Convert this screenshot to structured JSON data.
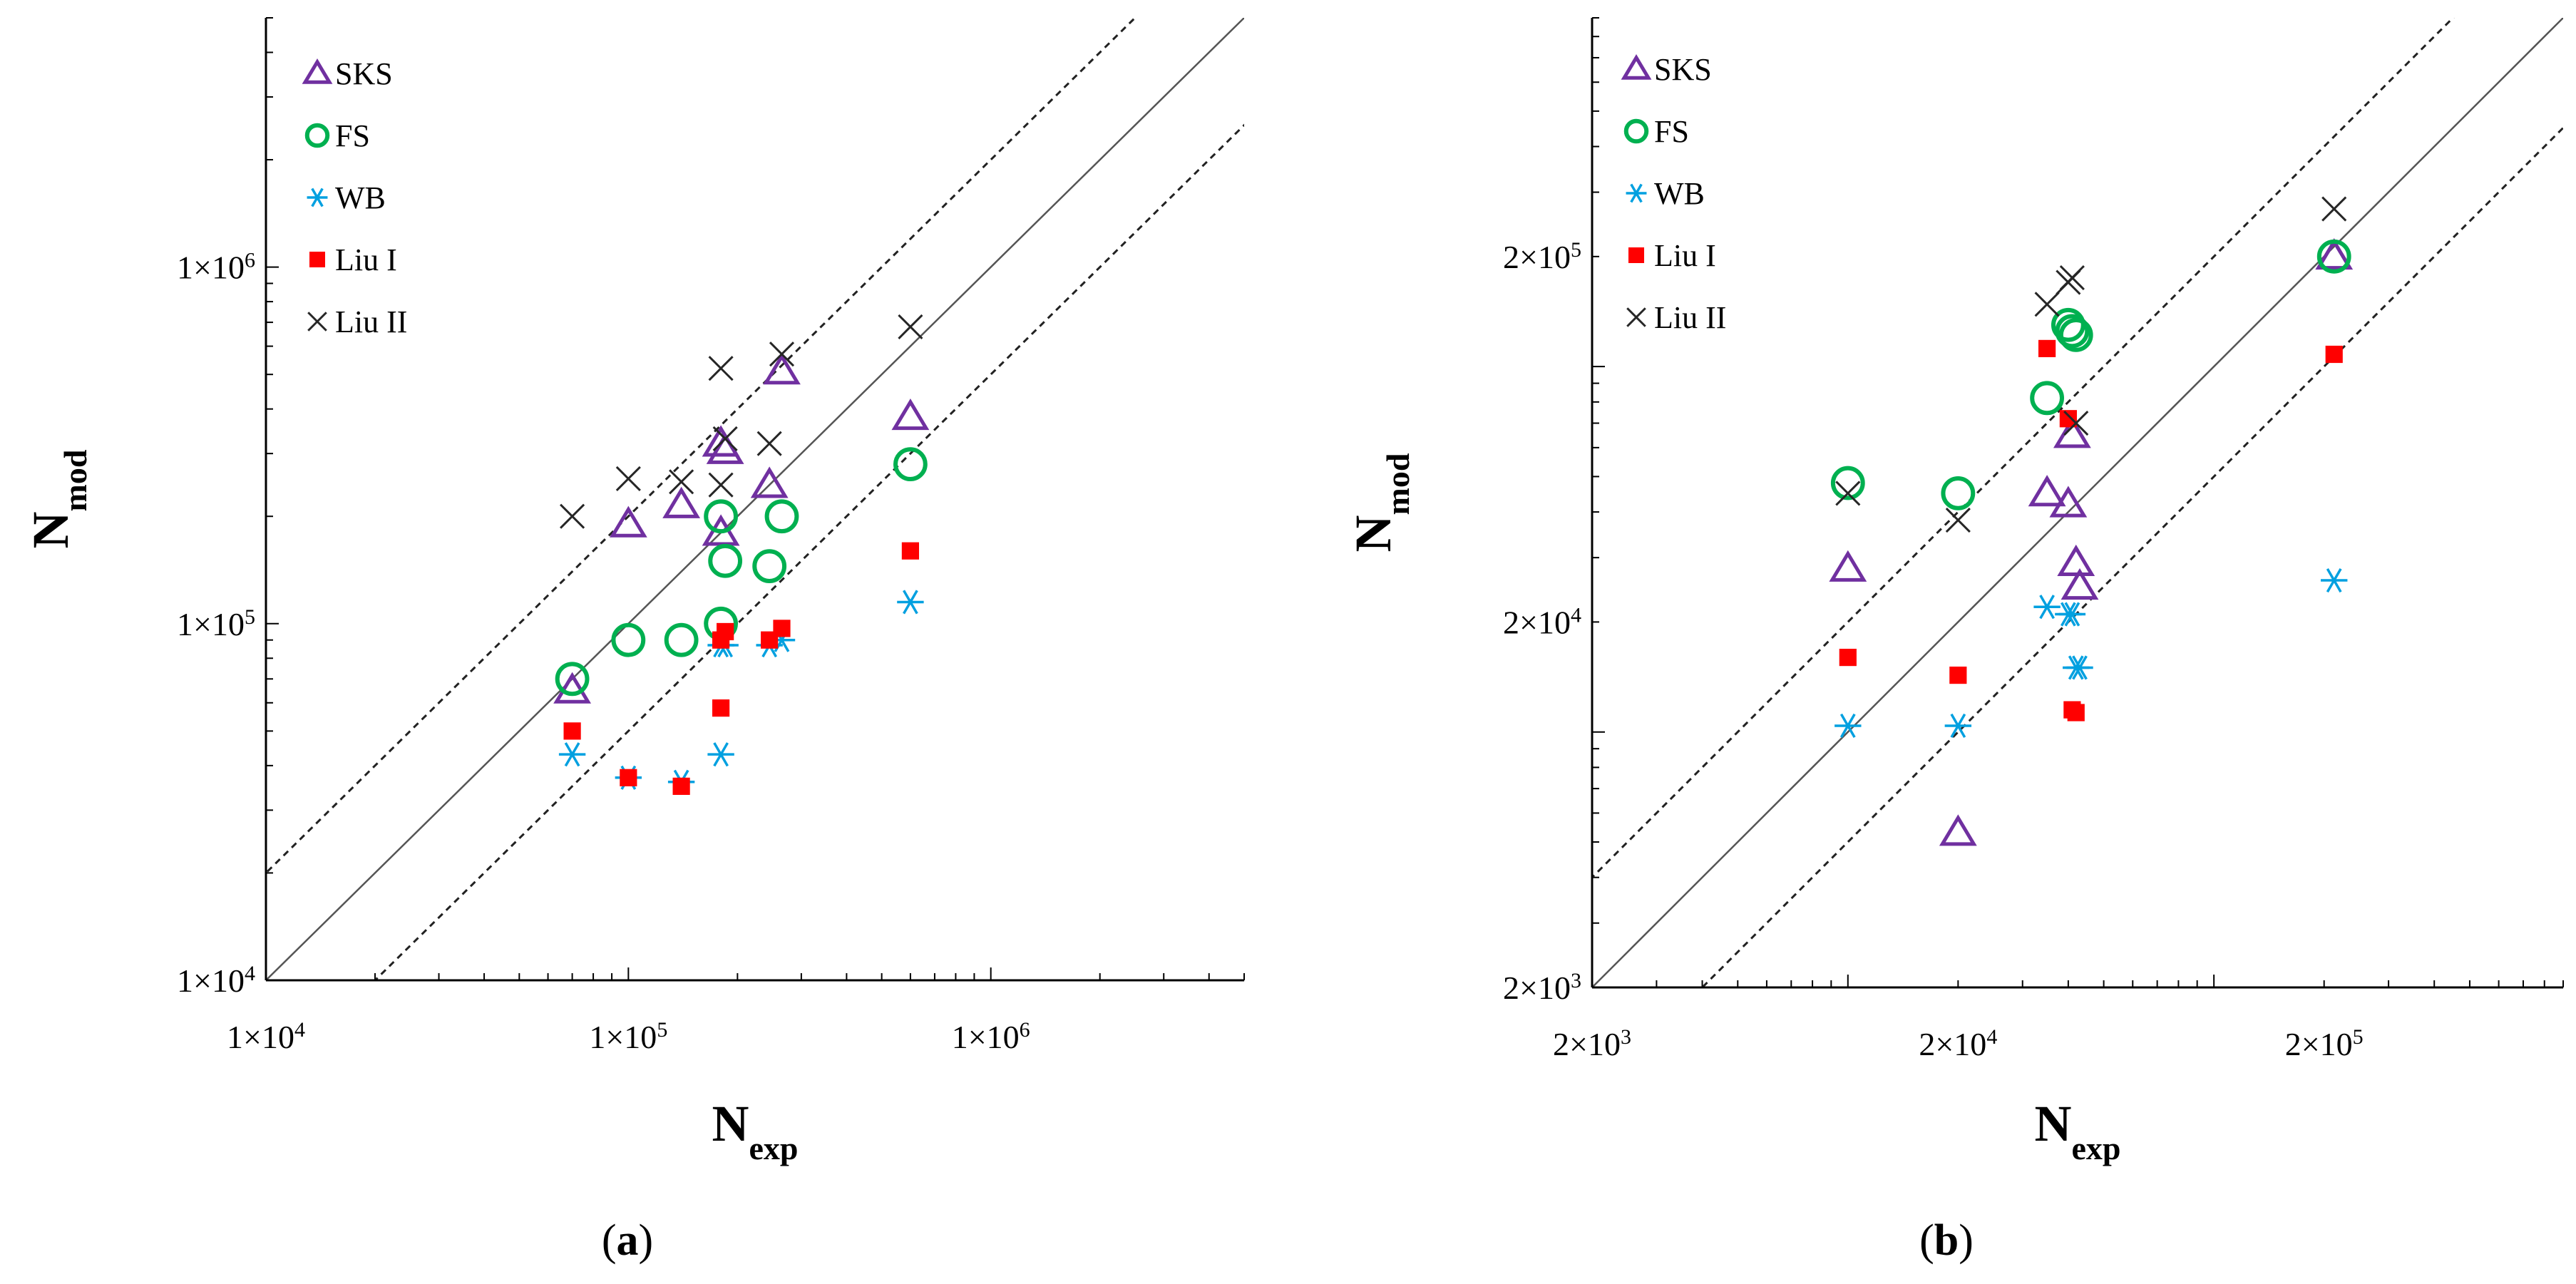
{
  "chart_data": [
    {
      "type": "scatter",
      "panel_label": "a",
      "xscale": "log",
      "yscale": "log",
      "xlim": [
        10000,
        5000000
      ],
      "ylim": [
        10000,
        5000000
      ],
      "xticks": [
        10000,
        100000,
        1000000
      ],
      "yticks": [
        10000,
        100000,
        1000000
      ],
      "xtick_labels": [
        [
          "1×10",
          "4"
        ],
        [
          "1×10",
          "5"
        ],
        [
          "1×10",
          "6"
        ]
      ],
      "ytick_labels": [
        [
          "1×10",
          "4"
        ],
        [
          "1×10",
          "5"
        ],
        [
          "1×10",
          "6"
        ]
      ],
      "xlabel": {
        "main": "N",
        "sub": "exp"
      },
      "ylabel": {
        "main": "N",
        "sub": "mod"
      },
      "reference_lines": [
        {
          "name": "equality",
          "factor": 1,
          "style": "solid"
        },
        {
          "name": "upper-factor-2",
          "factor": 2,
          "style": "dashed"
        },
        {
          "name": "lower-factor-2",
          "factor": 0.5,
          "style": "dashed"
        }
      ],
      "legend_position": "top-left",
      "series": [
        {
          "name": "SKS",
          "marker": "triangle",
          "color": "#7030A0",
          "points": [
            [
              70000,
              65000
            ],
            [
              100000,
              190000
            ],
            [
              140000,
              215000
            ],
            [
              180000,
              180000
            ],
            [
              180000,
              320000
            ],
            [
              185000,
              305000
            ],
            [
              245000,
              245000
            ],
            [
              265000,
              510000
            ],
            [
              600000,
              380000
            ]
          ]
        },
        {
          "name": "FS",
          "marker": "circle",
          "color": "#00B050",
          "points": [
            [
              70000,
              70000
            ],
            [
              100000,
              90000
            ],
            [
              140000,
              90000
            ],
            [
              180000,
              100000
            ],
            [
              180000,
              200000
            ],
            [
              185000,
              150000
            ],
            [
              245000,
              145000
            ],
            [
              265000,
              200000
            ],
            [
              600000,
              280000
            ]
          ]
        },
        {
          "name": "WB",
          "marker": "asterisk",
          "color": "#00A0E0",
          "points": [
            [
              70000,
              43000
            ],
            [
              100000,
              37000
            ],
            [
              140000,
              36000
            ],
            [
              180000,
              43000
            ],
            [
              180000,
              87000
            ],
            [
              185000,
              87000
            ],
            [
              245000,
              87000
            ],
            [
              265000,
              90000
            ],
            [
              600000,
              115000
            ]
          ]
        },
        {
          "name": "Liu I",
          "marker": "square",
          "color": "#FF0000",
          "points": [
            [
              70000,
              50000
            ],
            [
              100000,
              37000
            ],
            [
              140000,
              35000
            ],
            [
              180000,
              58000
            ],
            [
              180000,
              90000
            ],
            [
              185000,
              95000
            ],
            [
              245000,
              90000
            ],
            [
              265000,
              97000
            ],
            [
              600000,
              160000
            ]
          ]
        },
        {
          "name": "Liu II",
          "marker": "x",
          "color": "#262626",
          "points": [
            [
              70000,
              200000
            ],
            [
              100000,
              255000
            ],
            [
              140000,
              250000
            ],
            [
              180000,
              520000
            ],
            [
              180000,
              245000
            ],
            [
              185000,
              330000
            ],
            [
              245000,
              320000
            ],
            [
              265000,
              570000
            ],
            [
              600000,
              680000
            ]
          ]
        }
      ]
    },
    {
      "type": "scatter",
      "panel_label": "b",
      "xscale": "log",
      "yscale": "log",
      "xlim": [
        2000,
        900000
      ],
      "ylim": [
        2000,
        900000
      ],
      "xticks": [
        2000,
        20000,
        200000
      ],
      "yticks": [
        2000,
        20000,
        200000
      ],
      "xtick_labels": [
        [
          "2×10",
          "3"
        ],
        [
          "2×10",
          "4"
        ],
        [
          "2×10",
          "5"
        ]
      ],
      "ytick_labels": [
        [
          "2×10",
          "3"
        ],
        [
          "2×10",
          "4"
        ],
        [
          "2×10",
          "5"
        ]
      ],
      "xlabel": {
        "main": "N",
        "sub": "exp"
      },
      "ylabel": {
        "main": "N",
        "sub": "mod"
      },
      "reference_lines": [
        {
          "name": "equality",
          "factor": 1,
          "style": "solid"
        },
        {
          "name": "upper-factor-2",
          "factor": 2,
          "style": "dashed"
        },
        {
          "name": "lower-factor-2",
          "factor": 0.5,
          "style": "dashed"
        }
      ],
      "legend_position": "top-left",
      "series": [
        {
          "name": "SKS",
          "marker": "triangle",
          "color": "#7030A0",
          "points": [
            [
              10000,
              28000
            ],
            [
              20000,
              5300
            ],
            [
              35000,
              45000
            ],
            [
              40000,
              42000
            ],
            [
              41000,
              65000
            ],
            [
              42000,
              29000
            ],
            [
              43000,
              25000
            ],
            [
              213000,
              200000
            ]
          ]
        },
        {
          "name": "FS",
          "marker": "circle",
          "color": "#00B050",
          "points": [
            [
              10000,
              48000
            ],
            [
              20000,
              45000
            ],
            [
              35000,
              82000
            ],
            [
              40000,
              130000
            ],
            [
              41000,
              125000
            ],
            [
              42000,
              122000
            ],
            [
              213000,
              200000
            ]
          ]
        },
        {
          "name": "WB",
          "marker": "asterisk",
          "color": "#00A0E0",
          "points": [
            [
              10000,
              10400
            ],
            [
              20000,
              10400
            ],
            [
              35000,
              22000
            ],
            [
              40000,
              21000
            ],
            [
              41000,
              21000
            ],
            [
              42000,
              15000
            ],
            [
              43000,
              15000
            ],
            [
              213000,
              26000
            ]
          ]
        },
        {
          "name": "Liu I",
          "marker": "square",
          "color": "#FF0000",
          "points": [
            [
              10000,
              16000
            ],
            [
              20000,
              14300
            ],
            [
              35000,
              112000
            ],
            [
              40000,
              72000
            ],
            [
              41000,
              11500
            ],
            [
              42000,
              11300
            ],
            [
              213000,
              108000
            ]
          ]
        },
        {
          "name": "Liu II",
          "marker": "x",
          "color": "#262626",
          "points": [
            [
              10000,
              45000
            ],
            [
              20000,
              38000
            ],
            [
              35000,
              148000
            ],
            [
              40000,
              170000
            ],
            [
              41000,
              175000
            ],
            [
              42000,
              70000
            ],
            [
              213000,
              270000
            ]
          ]
        }
      ]
    }
  ]
}
